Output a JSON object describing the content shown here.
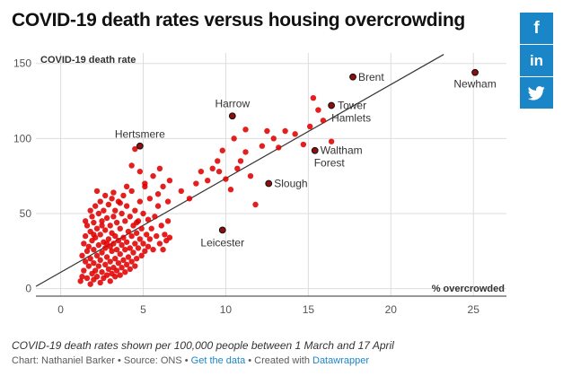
{
  "header": {
    "title": "COVID-19 death rates versus housing overcrowding"
  },
  "share": {
    "facebook": {
      "icon": "facebook-icon",
      "glyph": "f",
      "color": "#1a86c8"
    },
    "linkedin": {
      "icon": "linkedin-icon",
      "glyph": "in",
      "color": "#1a86c8"
    },
    "twitter": {
      "icon": "twitter-icon",
      "color": "#1a86c8"
    }
  },
  "colors": {
    "dot": "#e00000",
    "dot_labeled": "#8c0e0e",
    "trendline": "#333333",
    "grid": "#dddddd"
  },
  "chart_data": {
    "type": "scatter",
    "title": "COVID-19 death rates versus housing overcrowding",
    "ylabel": "COVID-19 death rate",
    "xlabel": "% overcrowded",
    "xlim": [
      -1.5,
      27
    ],
    "ylim": [
      -5,
      157
    ],
    "x_ticks": [
      "0",
      "5",
      "10",
      "15",
      "20",
      "25"
    ],
    "x_tick_values": [
      0,
      5,
      10,
      15,
      20,
      25
    ],
    "y_ticks": [
      "0",
      "50",
      "100",
      "150"
    ],
    "y_tick_values": [
      0,
      50,
      100,
      150
    ],
    "grid": "on",
    "trendline": {
      "x": [
        -1.5,
        23.2
      ],
      "y": [
        1.5,
        156
      ]
    },
    "labeled_points": [
      {
        "name": "Brent",
        "x": 17.7,
        "y": 141
      },
      {
        "name": "Newham",
        "x": 25.1,
        "y": 144
      },
      {
        "name": "Harrow",
        "x": 10.4,
        "y": 115
      },
      {
        "name": "Tower Hamlets",
        "lines": [
          "Tower",
          "Hamlets"
        ],
        "x": 16.4,
        "y": 122
      },
      {
        "name": "Hertsmere",
        "x": 4.8,
        "y": 95
      },
      {
        "name": "Waltham Forest",
        "lines": [
          "Waltham",
          "Forest"
        ],
        "x": 15.4,
        "y": 92
      },
      {
        "name": "Slough",
        "x": 12.6,
        "y": 70
      },
      {
        "name": "Leicester",
        "x": 9.8,
        "y": 39
      }
    ],
    "points": [
      [
        1.2,
        5
      ],
      [
        1.3,
        8
      ],
      [
        1.3,
        22
      ],
      [
        1.4,
        12
      ],
      [
        1.4,
        30
      ],
      [
        1.5,
        18
      ],
      [
        1.5,
        35
      ],
      [
        1.6,
        7
      ],
      [
        1.6,
        25
      ],
      [
        1.6,
        42
      ],
      [
        1.7,
        15
      ],
      [
        1.7,
        28
      ],
      [
        1.8,
        3
      ],
      [
        1.8,
        20
      ],
      [
        1.8,
        38
      ],
      [
        1.9,
        10
      ],
      [
        1.9,
        32
      ],
      [
        1.9,
        48
      ],
      [
        2.0,
        6
      ],
      [
        2.0,
        17
      ],
      [
        2.0,
        26
      ],
      [
        2.0,
        44
      ],
      [
        2.1,
        12
      ],
      [
        2.1,
        34
      ],
      [
        2.1,
        55
      ],
      [
        2.2,
        8
      ],
      [
        2.2,
        22
      ],
      [
        2.2,
        40
      ],
      [
        2.3,
        15
      ],
      [
        2.3,
        29
      ],
      [
        2.3,
        50
      ],
      [
        2.4,
        4
      ],
      [
        2.4,
        19
      ],
      [
        2.4,
        36
      ],
      [
        2.4,
        58
      ],
      [
        2.5,
        11
      ],
      [
        2.5,
        24
      ],
      [
        2.5,
        45
      ],
      [
        2.6,
        7
      ],
      [
        2.6,
        31
      ],
      [
        2.6,
        52
      ],
      [
        2.7,
        16
      ],
      [
        2.7,
        27
      ],
      [
        2.7,
        39
      ],
      [
        2.7,
        62
      ],
      [
        2.8,
        9
      ],
      [
        2.8,
        21
      ],
      [
        2.8,
        47
      ],
      [
        2.9,
        13
      ],
      [
        2.9,
        33
      ],
      [
        2.9,
        56
      ],
      [
        3.0,
        5
      ],
      [
        3.0,
        18
      ],
      [
        3.0,
        28
      ],
      [
        3.0,
        42
      ],
      [
        3.1,
        10
      ],
      [
        3.1,
        25
      ],
      [
        3.1,
        37
      ],
      [
        3.1,
        60
      ],
      [
        3.2,
        14
      ],
      [
        3.2,
        30
      ],
      [
        3.2,
        48
      ],
      [
        3.3,
        8
      ],
      [
        3.3,
        20
      ],
      [
        3.3,
        35
      ],
      [
        3.3,
        52
      ],
      [
        3.4,
        12
      ],
      [
        3.4,
        26
      ],
      [
        3.4,
        44
      ],
      [
        3.5,
        17
      ],
      [
        3.5,
        32
      ],
      [
        3.5,
        58
      ],
      [
        3.6,
        9
      ],
      [
        3.6,
        23
      ],
      [
        3.6,
        40
      ],
      [
        3.7,
        14
      ],
      [
        3.7,
        29
      ],
      [
        3.7,
        50
      ],
      [
        3.8,
        19
      ],
      [
        3.8,
        34
      ],
      [
        3.8,
        62
      ],
      [
        3.9,
        11
      ],
      [
        3.9,
        26
      ],
      [
        3.9,
        45
      ],
      [
        4.0,
        16
      ],
      [
        4.0,
        31
      ],
      [
        4.0,
        55
      ],
      [
        4.1,
        21
      ],
      [
        4.1,
        38
      ],
      [
        4.2,
        13
      ],
      [
        4.2,
        27
      ],
      [
        4.2,
        48
      ],
      [
        4.3,
        18
      ],
      [
        4.3,
        35
      ],
      [
        4.3,
        65
      ],
      [
        4.4,
        24
      ],
      [
        4.4,
        42
      ],
      [
        4.5,
        15
      ],
      [
        4.5,
        30
      ],
      [
        4.5,
        52
      ],
      [
        4.6,
        20
      ],
      [
        4.6,
        37
      ],
      [
        4.7,
        27
      ],
      [
        4.7,
        45
      ],
      [
        4.8,
        33
      ],
      [
        4.8,
        58
      ],
      [
        4.9,
        22
      ],
      [
        4.9,
        40
      ],
      [
        5.0,
        30
      ],
      [
        5.0,
        50
      ],
      [
        5.1,
        25
      ],
      [
        5.1,
        68
      ],
      [
        5.2,
        36
      ],
      [
        5.3,
        28
      ],
      [
        5.3,
        46
      ],
      [
        5.4,
        33
      ],
      [
        5.4,
        60
      ],
      [
        5.5,
        40
      ],
      [
        5.6,
        26
      ],
      [
        5.7,
        48
      ],
      [
        5.8,
        35
      ],
      [
        5.9,
        55
      ],
      [
        6.0,
        30
      ],
      [
        6.1,
        42
      ],
      [
        6.2,
        26
      ],
      [
        6.3,
        36
      ],
      [
        6.4,
        32
      ],
      [
        6.5,
        45
      ],
      [
        6.6,
        34
      ],
      [
        2.2,
        65
      ],
      [
        3.2,
        64
      ],
      [
        4.0,
        68
      ],
      [
        1.5,
        45
      ],
      [
        2.5,
        42
      ],
      [
        1.8,
        52
      ],
      [
        3.6,
        57
      ],
      [
        2.0,
        36
      ],
      [
        2.8,
        30
      ],
      [
        4.6,
        44
      ],
      [
        4.5,
        93
      ],
      [
        4.3,
        82
      ],
      [
        4.8,
        78
      ],
      [
        5.1,
        70
      ],
      [
        5.6,
        75
      ],
      [
        5.9,
        63
      ],
      [
        6.2,
        68
      ],
      [
        6.5,
        58
      ],
      [
        6.0,
        80
      ],
      [
        6.6,
        72
      ],
      [
        7.3,
        65
      ],
      [
        7.8,
        60
      ],
      [
        8.2,
        70
      ],
      [
        8.5,
        78
      ],
      [
        8.9,
        72
      ],
      [
        9.2,
        80
      ],
      [
        9.5,
        85
      ],
      [
        9.8,
        92
      ],
      [
        10.0,
        73
      ],
      [
        10.3,
        66
      ],
      [
        10.7,
        80
      ],
      [
        10.9,
        85
      ],
      [
        11.2,
        91
      ],
      [
        11.5,
        75
      ],
      [
        11.8,
        56
      ],
      [
        12.2,
        95
      ],
      [
        12.5,
        105
      ],
      [
        12.9,
        100
      ],
      [
        13.2,
        94
      ],
      [
        13.6,
        105
      ],
      [
        14.2,
        103
      ],
      [
        14.7,
        96
      ],
      [
        15.1,
        108
      ],
      [
        15.3,
        127
      ],
      [
        15.6,
        119
      ],
      [
        15.9,
        112
      ],
      [
        16.4,
        98
      ],
      [
        10.5,
        100
      ],
      [
        11.2,
        106
      ],
      [
        9.6,
        78
      ]
    ]
  },
  "footer": {
    "note": "COVID-19 death rates shown per 100,000 people between 1 March and 17 April",
    "credit_prefix": "Chart: Nathaniel Barker • Source: ONS • ",
    "get_data_link": "Get the data",
    "separator": " • Created with ",
    "datawrapper_link": "Datawrapper"
  }
}
